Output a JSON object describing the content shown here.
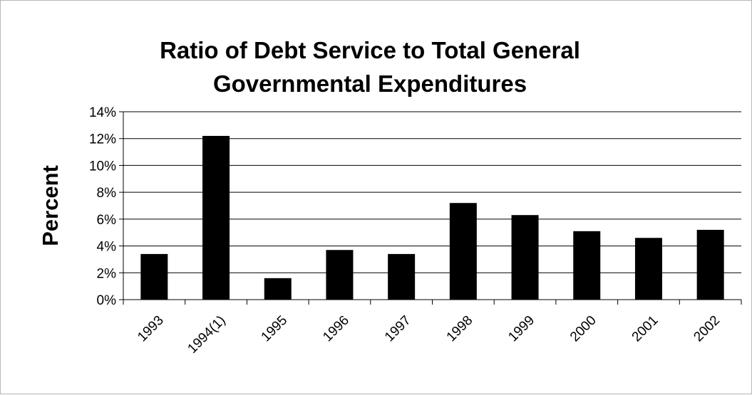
{
  "chart_data": {
    "type": "bar",
    "title_lines": [
      "Ratio of Debt Service to Total General",
      "Governmental Expenditures"
    ],
    "xlabel": "",
    "ylabel": "Percent",
    "categories": [
      "1993",
      "1994(1)",
      "1995",
      "1996",
      "1997",
      "1998",
      "1999",
      "2000",
      "2001",
      "2002"
    ],
    "values": [
      3.4,
      12.2,
      1.6,
      3.7,
      3.4,
      7.2,
      6.3,
      5.1,
      4.6,
      5.2
    ],
    "ylim": [
      0,
      14
    ],
    "yticks": [
      0,
      2,
      4,
      6,
      8,
      10,
      12,
      14
    ],
    "ytick_labels": [
      "0%",
      "2%",
      "4%",
      "6%",
      "8%",
      "10%",
      "12%",
      "14%"
    ],
    "grid": true,
    "legend": "none",
    "bar_color": "#000000",
    "grid_color": "#000000"
  }
}
